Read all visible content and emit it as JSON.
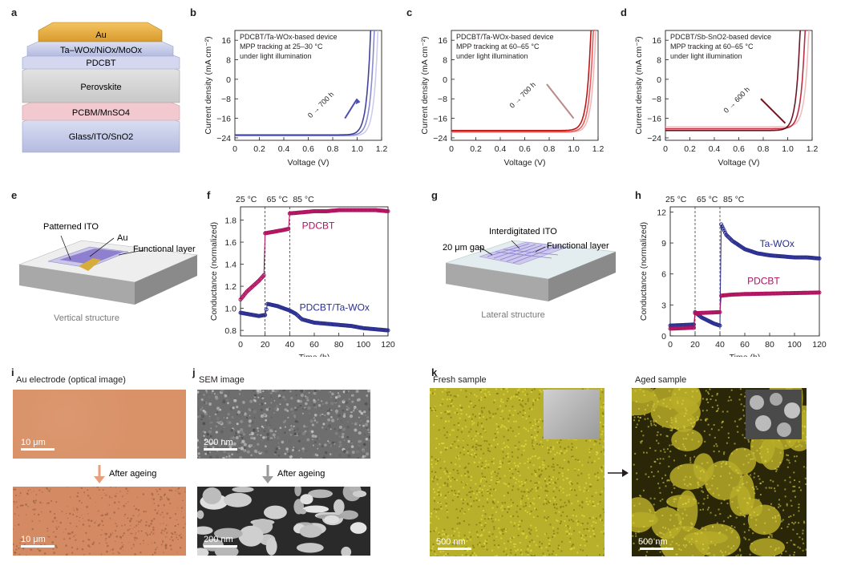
{
  "panels": {
    "a": "a",
    "b": "b",
    "c": "c",
    "d": "d",
    "e": "e",
    "f": "f",
    "g": "g",
    "h": "h",
    "i": "i",
    "j": "j",
    "k": "k"
  },
  "stack": {
    "layers": [
      "Au",
      "Ta–WOx/NiOx/MoOx",
      "PDCBT",
      "Perovskite",
      "PCBM/MnSO4",
      "Glass/ITO/SnO2"
    ]
  },
  "jv_axis": {
    "xlabel": "Voltage (V)",
    "ylabel": "Current density (mA cm⁻²)",
    "xticks": [
      "0",
      "0.2",
      "0.4",
      "0.6",
      "0.8",
      "1.0",
      "1.2"
    ],
    "yticks": [
      "16",
      "8",
      "0",
      "−8",
      "−16",
      "−24"
    ]
  },
  "panel_b": {
    "legend": [
      "PDCBT/Ta-WOx-based device",
      "MPP tracking at 25–30 °C",
      "under light illumination"
    ],
    "arrow_label": "0 → 700 h"
  },
  "panel_c": {
    "legend": [
      "PDCBT/Ta-WOx-based device",
      "MPP tracking at 60–65 °C",
      "under light illumination"
    ],
    "arrow_label": "0 → 700 h"
  },
  "panel_d": {
    "legend": [
      "PDCBT/Sb-SnO2-based device",
      "MPP tracking at 60–65 °C",
      "under light illumination"
    ],
    "arrow_label": "0 → 600 h"
  },
  "panel_e": {
    "labels": [
      "Patterned ITO",
      "Au",
      "Functional layer"
    ],
    "caption": "Vertical structure"
  },
  "panel_g": {
    "labels": [
      "Interdigitated ITO",
      "20 μm gap",
      "Functional layer"
    ],
    "caption": "Lateral structure"
  },
  "temp_labels": [
    "25 °C",
    "65 °C",
    "85 °C"
  ],
  "panel_f": {
    "xlabel": "Time (h)",
    "ylabel": "Conductance (normalized)",
    "xticks": [
      "0",
      "20",
      "40",
      "60",
      "80",
      "100",
      "120"
    ],
    "yticks": [
      "0.8",
      "1.0",
      "1.2",
      "1.4",
      "1.6",
      "1.8"
    ],
    "series_labels": [
      "PDCBT",
      "PDCBT/Ta-WOx"
    ]
  },
  "panel_h": {
    "xlabel": "Time (h)",
    "ylabel": "Conductance (normalized)",
    "xticks": [
      "0",
      "20",
      "40",
      "60",
      "80",
      "100",
      "120"
    ],
    "yticks": [
      "0",
      "3",
      "6",
      "9",
      "12"
    ],
    "series_labels": [
      "Ta-WOx",
      "PDCBT"
    ]
  },
  "panel_i": {
    "title": "Au electrode (optical image)",
    "scale_top": "10 μm",
    "scale_bottom": "10 μm",
    "after": "After ageing"
  },
  "panel_j": {
    "title": "SEM image",
    "scale_top": "200 nm",
    "scale_bottom": "200 nm",
    "after": "After ageing"
  },
  "panel_k": {
    "fresh": "Fresh sample",
    "aged": "Aged sample",
    "scale_left": "500 nm",
    "scale_right": "500 nm"
  },
  "colors": {
    "blue": "#2b2f8f",
    "red": "#d40000",
    "magenta": "#b0125f",
    "darkred": "#6b0012",
    "yellow": "#c9c02a",
    "copper": "#d9906a"
  },
  "chart_data": [
    {
      "type": "line",
      "panel": "b",
      "xlabel": "Voltage (V)",
      "ylabel": "Current density (mA cm⁻²)",
      "xlim": [
        0,
        1.2
      ],
      "ylim": [
        -25,
        20
      ],
      "series": [
        {
          "Jsc": -23.2,
          "Voc": 1.15
        },
        {
          "Jsc": -23.0,
          "Voc": 1.12
        },
        {
          "Jsc": -22.8,
          "Voc": 1.09
        }
      ]
    },
    {
      "type": "line",
      "panel": "c",
      "xlabel": "Voltage (V)",
      "ylabel": "Current density (mA cm⁻²)",
      "xlim": [
        0,
        1.2
      ],
      "ylim": [
        -25,
        20
      ],
      "series": [
        {
          "Jsc": -21.7,
          "Voc": 1.16
        },
        {
          "Jsc": -21.5,
          "Voc": 1.14
        },
        {
          "Jsc": -21.0,
          "Voc": 1.12
        }
      ]
    },
    {
      "type": "line",
      "panel": "d",
      "xlabel": "Voltage (V)",
      "ylabel": "Current density (mA cm⁻²)",
      "xlim": [
        0,
        1.2
      ],
      "ylim": [
        -25,
        20
      ],
      "series": [
        {
          "Jsc": -19.5,
          "Voc": 1.15
        },
        {
          "Jsc": -20.3,
          "Voc": 1.12
        },
        {
          "Jsc": -21.0,
          "Voc": 1.08
        }
      ]
    },
    {
      "type": "scatter",
      "panel": "f",
      "xlabel": "Time (h)",
      "ylabel": "Conductance (normalized)",
      "xlim": [
        0,
        120
      ],
      "ylim": [
        0.75,
        1.92
      ],
      "series": [
        {
          "name": "PDCBT",
          "x": [
            0,
            5,
            10,
            15,
            19,
            20,
            25,
            30,
            35,
            39,
            40,
            50,
            60,
            70,
            80,
            90,
            100,
            110,
            120
          ],
          "values": [
            1.08,
            1.15,
            1.2,
            1.25,
            1.3,
            1.68,
            1.69,
            1.7,
            1.71,
            1.72,
            1.86,
            1.87,
            1.88,
            1.88,
            1.89,
            1.89,
            1.89,
            1.89,
            1.88
          ]
        },
        {
          "name": "PDCBT/Ta-WOx",
          "x": [
            0,
            5,
            10,
            15,
            20,
            22,
            30,
            40,
            45,
            50,
            60,
            70,
            80,
            90,
            100,
            110,
            120
          ],
          "values": [
            0.96,
            0.95,
            0.94,
            0.93,
            0.94,
            1.04,
            1.02,
            0.98,
            0.95,
            0.9,
            0.87,
            0.86,
            0.85,
            0.84,
            0.82,
            0.81,
            0.8
          ]
        }
      ]
    },
    {
      "type": "scatter",
      "panel": "h",
      "xlabel": "Time (h)",
      "ylabel": "Conductance (normalized)",
      "xlim": [
        0,
        120
      ],
      "ylim": [
        0,
        12.5
      ],
      "series": [
        {
          "name": "Ta-WOx",
          "x": [
            0,
            10,
            19,
            20,
            25,
            30,
            35,
            40,
            41,
            45,
            50,
            60,
            70,
            80,
            90,
            100,
            110,
            120
          ],
          "values": [
            1.0,
            1.05,
            1.1,
            2.3,
            1.8,
            1.5,
            1.2,
            1.0,
            10.8,
            9.8,
            9.2,
            8.4,
            8.0,
            7.8,
            7.7,
            7.6,
            7.6,
            7.5
          ]
        },
        {
          "name": "PDCBT",
          "x": [
            0,
            10,
            19,
            20,
            30,
            40,
            41,
            50,
            60,
            80,
            100,
            120
          ],
          "values": [
            0.7,
            0.75,
            0.8,
            2.2,
            2.25,
            2.3,
            3.9,
            4.0,
            4.05,
            4.1,
            4.15,
            4.2
          ]
        }
      ]
    }
  ]
}
